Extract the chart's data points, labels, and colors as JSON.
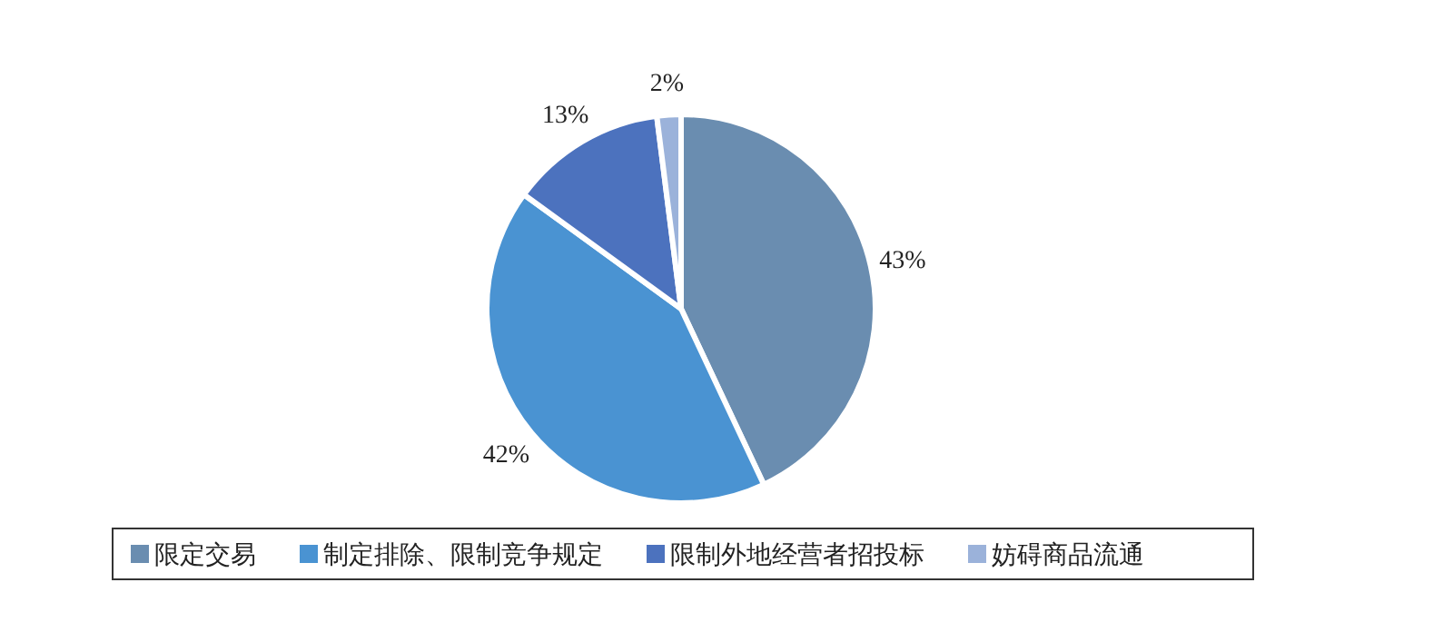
{
  "chart_data": {
    "type": "pie",
    "categories": [
      "限定交易",
      "制定排除、限制竞争规定",
      "限制外地经营者招投标",
      "妨碍商品流通"
    ],
    "values": [
      43,
      42,
      13,
      2
    ],
    "colors": [
      "#6a8db0",
      "#4a93d2",
      "#4c72be",
      "#9bb2da"
    ],
    "value_labels": [
      "43%",
      "42%",
      "13%",
      "2%"
    ],
    "legend": "bottom"
  }
}
